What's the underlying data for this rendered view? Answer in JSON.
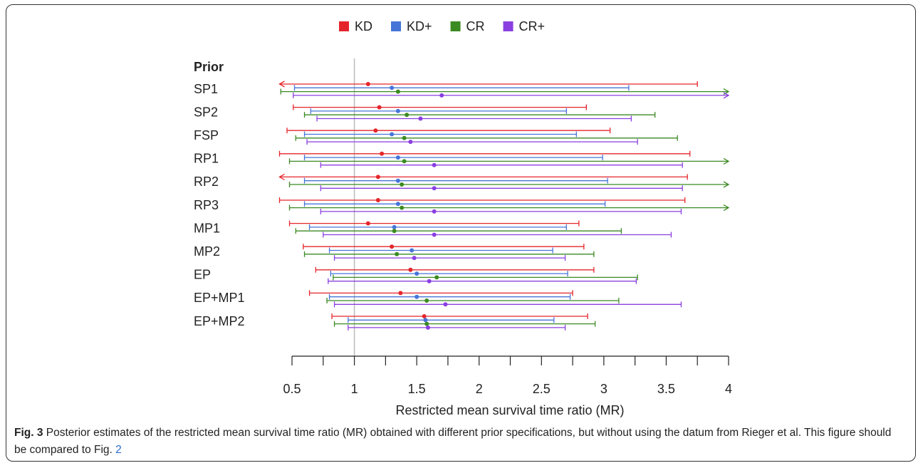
{
  "chart_data": {
    "type": "forest",
    "row_header": "Prior",
    "categories": [
      "SP1",
      "SP2",
      "FSP",
      "RP1",
      "RP2",
      "RP3",
      "MP1",
      "MP2",
      "EP",
      "EP+MP1",
      "EP+MP2"
    ],
    "series": [
      {
        "name": "KD",
        "color": "#e4262b",
        "values": [
          1.11,
          1.2,
          1.17,
          1.22,
          1.19,
          1.19,
          1.11,
          1.3,
          1.45,
          1.37,
          1.56
        ],
        "lower": [
          null,
          0.51,
          0.46,
          0.4,
          null,
          0.4,
          0.48,
          0.59,
          0.69,
          0.64,
          0.82
        ],
        "upper": [
          3.75,
          2.86,
          3.05,
          3.69,
          3.67,
          3.65,
          2.8,
          2.84,
          2.92,
          2.75,
          2.87
        ]
      },
      {
        "name": "KD+",
        "color": "#4675d8",
        "values": [
          1.3,
          1.35,
          1.3,
          1.35,
          1.35,
          1.35,
          1.32,
          1.46,
          1.5,
          1.5,
          1.57
        ],
        "lower": [
          0.52,
          0.65,
          0.6,
          0.6,
          0.6,
          0.6,
          0.64,
          0.8,
          0.81,
          0.8,
          0.95
        ],
        "upper": [
          3.2,
          2.7,
          2.78,
          2.99,
          3.03,
          3.01,
          2.7,
          2.59,
          2.71,
          2.73,
          2.6
        ]
      },
      {
        "name": "CR",
        "color": "#3b8a22",
        "values": [
          1.35,
          1.42,
          1.4,
          1.4,
          1.38,
          1.38,
          1.32,
          1.34,
          1.66,
          1.58,
          1.58
        ],
        "lower": [
          0.41,
          0.6,
          0.53,
          0.48,
          0.48,
          0.48,
          0.53,
          0.6,
          0.83,
          0.78,
          0.84
        ],
        "upper": [
          null,
          3.41,
          3.59,
          null,
          null,
          null,
          3.14,
          2.92,
          3.27,
          3.12,
          2.93
        ]
      },
      {
        "name": "CR+",
        "color": "#8a3fe0",
        "values": [
          1.7,
          1.53,
          1.45,
          1.64,
          1.64,
          1.64,
          1.64,
          1.48,
          1.6,
          1.73,
          1.59
        ],
        "lower": [
          0.51,
          0.7,
          0.62,
          0.73,
          0.73,
          0.73,
          0.75,
          0.84,
          0.79,
          0.84,
          0.95
        ],
        "upper": [
          null,
          3.22,
          3.27,
          3.63,
          3.63,
          3.62,
          3.54,
          2.69,
          3.26,
          3.62,
          2.69
        ]
      }
    ],
    "xlim": [
      0.4,
      4
    ],
    "xticks": [
      0.5,
      1,
      1.5,
      2,
      2.5,
      3,
      3.5,
      4
    ],
    "xminor_ticks": [
      0.75,
      1.25,
      1.75,
      2.25,
      2.75,
      3.25,
      3.75
    ],
    "reference_line": 1,
    "xlabel": "Restricted mean survival time ratio (MR)",
    "legend": "top"
  },
  "caption": {
    "label": "Fig. 3",
    "text": "Posterior estimates of the restricted mean survival time ratio (MR) obtained with different prior specifications, but without using the datum from Rieger et al. This figure should be compared to Fig.",
    "link": "2"
  }
}
